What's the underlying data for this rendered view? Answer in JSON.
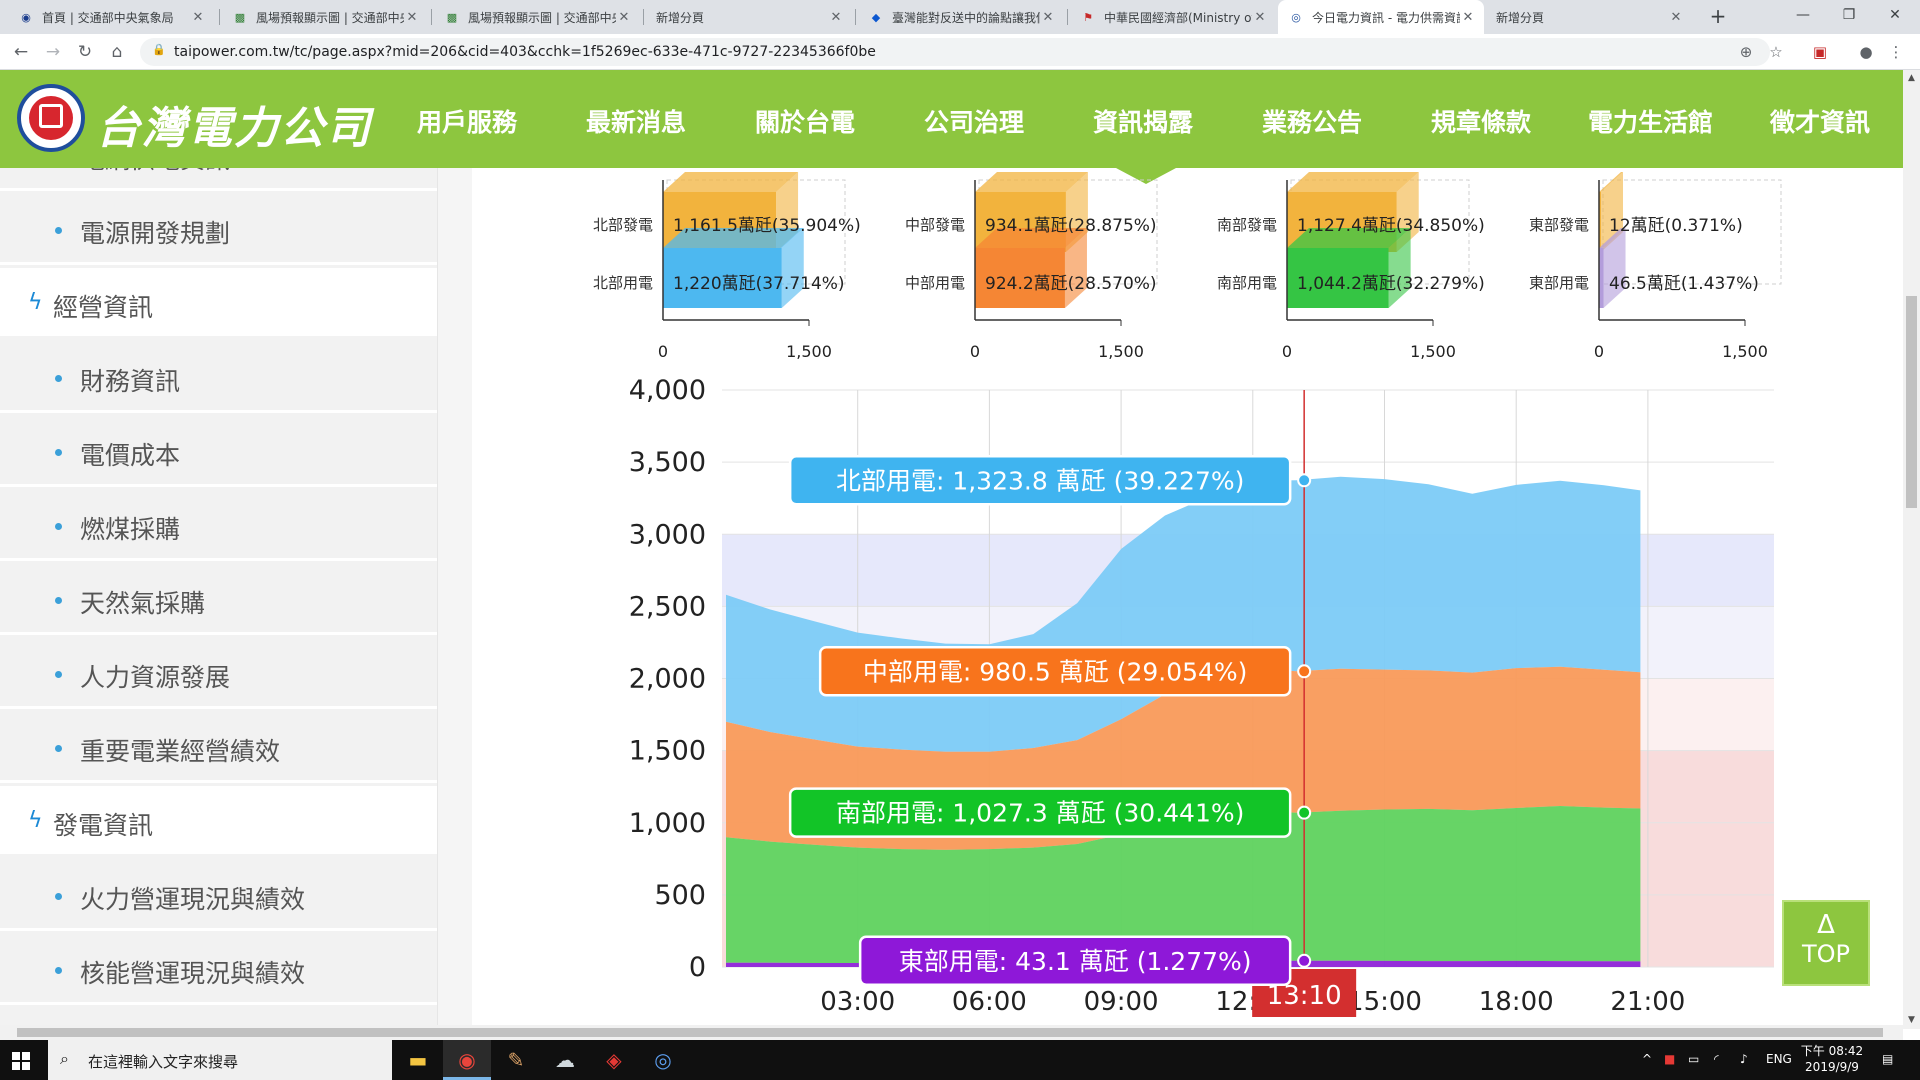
{
  "browser": {
    "tabs": [
      {
        "label": "首頁 | 交通部中央氣象局"
      },
      {
        "label": "風場預報顯示圖 | 交通部中央氣象局"
      },
      {
        "label": "風場預報顯示圖 | 交通部中央氣象局"
      },
      {
        "label": "新增分頁"
      },
      {
        "label": "臺灣能對反送中的論點讓我們"
      },
      {
        "label": "中華民國經濟部(Ministry of"
      },
      {
        "label": "今日電力資訊 - 電力供需資訊"
      },
      {
        "label": "新增分頁"
      }
    ],
    "url": "taipower.com.tw/tc/page.aspx?mid=206&cid=403&cchk=1f5269ec-633e-471c-9727-22345366f0be"
  },
  "site": {
    "logo_text": "台灣電力公司",
    "nav": [
      "用戶服務",
      "最新消息",
      "關於台電",
      "公司治理",
      "資訊揭露",
      "業務公告",
      "規章條款",
      "電力生活館",
      "徵才資訊"
    ]
  },
  "sidebar": {
    "items": [
      {
        "label": "電網供電資訊",
        "type": "sub"
      },
      {
        "label": "電源開發規劃",
        "type": "sub"
      },
      {
        "label": "經營資訊",
        "type": "cat"
      },
      {
        "label": "財務資訊",
        "type": "sub"
      },
      {
        "label": "電價成本",
        "type": "sub"
      },
      {
        "label": "燃煤採購",
        "type": "sub"
      },
      {
        "label": "天然氣採購",
        "type": "sub"
      },
      {
        "label": "人力資源發展",
        "type": "sub"
      },
      {
        "label": "重要電業經營績效",
        "type": "sub"
      },
      {
        "label": "發電資訊",
        "type": "cat"
      },
      {
        "label": "火力營運現況與績效",
        "type": "sub"
      },
      {
        "label": "核能營運現況與績效",
        "type": "sub"
      }
    ]
  },
  "chart_data": [
    {
      "type": "bar",
      "panels": [
        {
          "gen_label": "北部發電",
          "gen_value": 1161.5,
          "gen_text": "1,161.5萬瓩(35.904%)",
          "use_label": "北部用電",
          "use_value": 1220,
          "use_text": "1,220萬瓩(37.714%)",
          "use_color": "#4db8f0"
        },
        {
          "gen_label": "中部發電",
          "gen_value": 934.1,
          "gen_text": "934.1萬瓩(28.875%)",
          "use_label": "中部用電",
          "use_value": 924.2,
          "use_text": "924.2萬瓩(28.570%)",
          "use_color": "#f58634"
        },
        {
          "gen_label": "南部發電",
          "gen_value": 1127.4,
          "gen_text": "1,127.4萬瓩(34.850%)",
          "use_label": "南部用電",
          "use_value": 1044.2,
          "use_text": "1,044.2萬瓩(32.279%)",
          "use_color": "#35c544"
        },
        {
          "gen_label": "東部發電",
          "gen_value": 12,
          "gen_text": "12萬瓩(0.371%)",
          "use_label": "東部用電",
          "use_value": 46.5,
          "use_text": "46.5萬瓩(1.437%)",
          "use_color": "#b39ddb"
        }
      ],
      "gen_color": "#f2b33d",
      "xlim": [
        0,
        1500
      ],
      "xticks": [
        "0",
        "1,500"
      ]
    },
    {
      "type": "area",
      "stacked": true,
      "ylim": [
        0,
        4000
      ],
      "yticks": [
        "0",
        "500",
        "1,000",
        "1,500",
        "2,000",
        "2,500",
        "3,000",
        "3,500",
        "4,000"
      ],
      "xticks": [
        "03:00",
        "06:00",
        "09:00",
        "12:00",
        "15:00",
        "18:00",
        "21:00"
      ],
      "x_hours": [
        0,
        1,
        2,
        3,
        4,
        5,
        6,
        7,
        8,
        9,
        10,
        11,
        12,
        13,
        14,
        15,
        16,
        17,
        18,
        19,
        20,
        20.83
      ],
      "series": [
        {
          "name": "東部用電",
          "color": "#8e24d8",
          "values": [
            30,
            29,
            28,
            28,
            27,
            27,
            27,
            28,
            33,
            38,
            40,
            41,
            42,
            43,
            43,
            42,
            41,
            41,
            42,
            41,
            40,
            39
          ]
        },
        {
          "name": "南部用電",
          "color": "#5fd35f",
          "values": [
            870,
            840,
            820,
            800,
            790,
            785,
            790,
            800,
            820,
            880,
            950,
            1000,
            1040,
            1027,
            1040,
            1050,
            1055,
            1045,
            1060,
            1075,
            1065,
            1060
          ]
        },
        {
          "name": "中部用電",
          "color": "#f99a5a",
          "values": [
            800,
            760,
            730,
            700,
            690,
            680,
            675,
            690,
            720,
            800,
            900,
            960,
            990,
            980,
            985,
            970,
            960,
            955,
            970,
            965,
            955,
            945
          ]
        },
        {
          "name": "北部用電",
          "color": "#7ccbf7",
          "values": [
            880,
            850,
            820,
            790,
            770,
            750,
            745,
            790,
            950,
            1180,
            1240,
            1260,
            1300,
            1324,
            1330,
            1320,
            1290,
            1240,
            1270,
            1290,
            1280,
            1260
          ]
        }
      ],
      "bands": [
        {
          "from": 2500,
          "to": 3000,
          "color": "#e6e8fb"
        },
        {
          "from": 2000,
          "to": 2500,
          "color": "#f2f2fb"
        },
        {
          "from": 1500,
          "to": 2000,
          "color": "#fcf0f0"
        },
        {
          "from": 0,
          "to": 1500,
          "color": "#f8dcdc"
        }
      ],
      "crosshair": {
        "label": "13:10",
        "hour": 13.17,
        "color": "#d32f2f"
      },
      "tooltips": [
        {
          "text": "北部用電: 1,323.8 萬瓩 (39.227%)",
          "bg": "#3fb4f0",
          "at": 3374
        },
        {
          "text": "中部用電: 980.5 萬瓩 (29.054%)",
          "bg": "#f8741c",
          "at": 2050
        },
        {
          "text": "南部用電: 1,027.3 萬瓩 (30.441%)",
          "bg": "#12c427",
          "at": 1070
        },
        {
          "text": "東部用電: 43.1 萬瓩 (1.277%)",
          "bg": "#8e18d8",
          "at": 43
        }
      ]
    }
  ],
  "top_button": {
    "arrow": "Δ",
    "label": "TOP"
  },
  "taskbar": {
    "search_placeholder": "在這裡輸入文字來搜尋",
    "lang": "ENG",
    "time": "下午 08:42",
    "date": "2019/9/9"
  }
}
